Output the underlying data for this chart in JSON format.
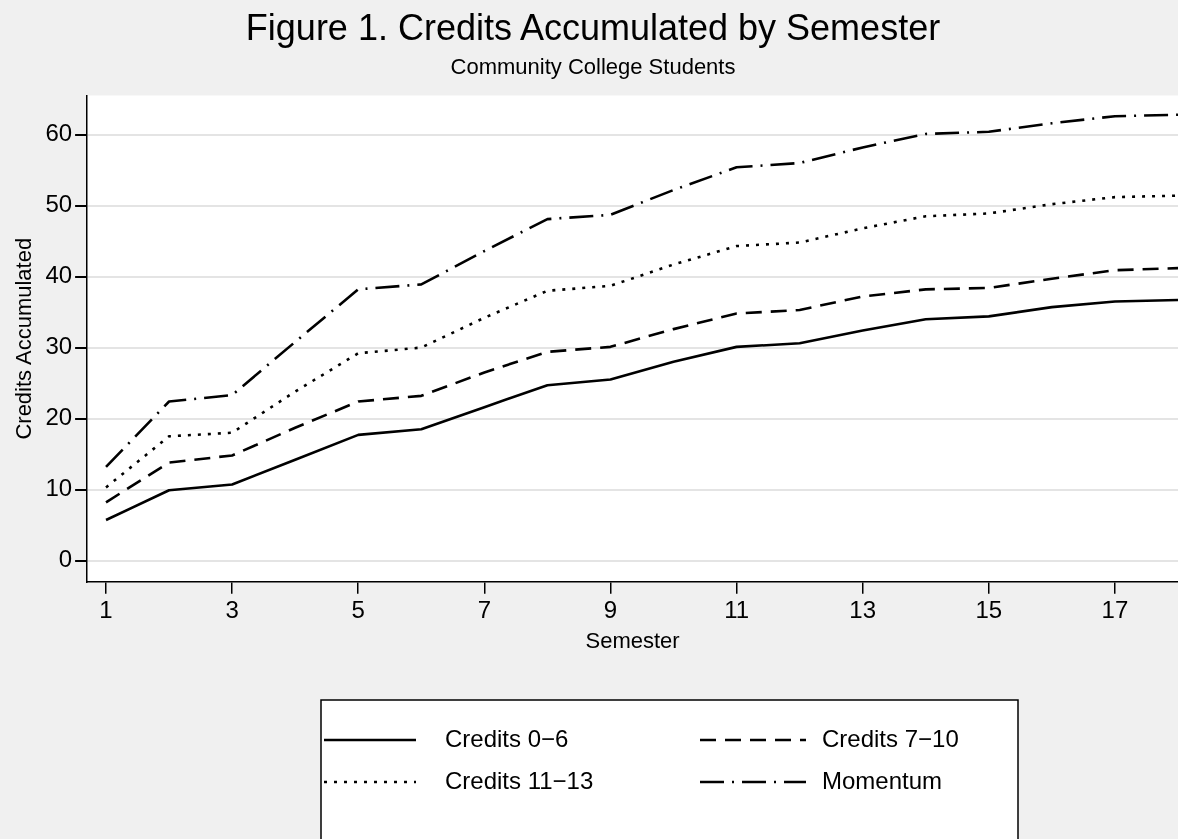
{
  "chart_data": {
    "type": "line",
    "title": "Figure 1. Credits Accumulated by Semester",
    "subtitle": "Community College Students",
    "xlabel": "Semester",
    "ylabel": "Credits Accumulated",
    "x": [
      1,
      2,
      3,
      4,
      5,
      6,
      7,
      8,
      9,
      10,
      11,
      12,
      13,
      14,
      15,
      16,
      17,
      18
    ],
    "xlim": [
      0.7,
      18
    ],
    "xticks": [
      1,
      3,
      5,
      7,
      9,
      11,
      13,
      15,
      17
    ],
    "ylim": [
      -3,
      65.5
    ],
    "yticks": [
      0,
      10,
      20,
      30,
      40,
      50,
      60
    ],
    "grid": "y",
    "legend": "bottom",
    "marker": "none",
    "series": [
      {
        "name": "Credits 0−6",
        "color": "#000000",
        "line_style": "solid",
        "values": [
          5.7,
          9.9,
          10.7,
          14.2,
          17.7,
          18.5,
          21.6,
          24.7,
          25.5,
          28.0,
          30.1,
          30.6,
          32.4,
          34.0,
          34.4,
          35.7,
          36.5,
          36.7
        ]
      },
      {
        "name": "Credits 7−10",
        "color": "#000000",
        "line_style": "dashed",
        "values": [
          8.2,
          13.8,
          14.8,
          18.7,
          22.4,
          23.2,
          26.5,
          29.4,
          30.1,
          32.6,
          34.8,
          35.3,
          37.2,
          38.2,
          38.4,
          39.7,
          40.9,
          41.2
        ]
      },
      {
        "name": "Credits 11−13",
        "color": "#000000",
        "line_style": "dotted",
        "values": [
          10.3,
          17.5,
          18.0,
          23.8,
          29.2,
          30.0,
          34.2,
          38.0,
          38.7,
          41.7,
          44.3,
          44.8,
          46.8,
          48.5,
          48.9,
          50.2,
          51.2,
          51.4
        ]
      },
      {
        "name": "Momentum",
        "color": "#000000",
        "line_style": "dashdot",
        "values": [
          13.2,
          22.4,
          23.3,
          30.8,
          38.2,
          38.9,
          43.6,
          48.1,
          48.7,
          52.2,
          55.4,
          56.0,
          58.2,
          60.1,
          60.4,
          61.6,
          62.6,
          62.8
        ]
      }
    ]
  }
}
